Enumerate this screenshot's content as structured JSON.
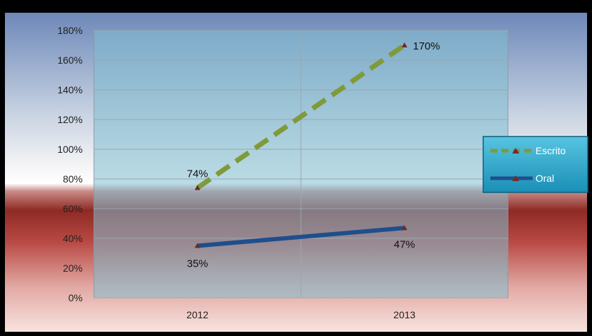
{
  "chart_data": {
    "type": "line",
    "categories": [
      "2012",
      "2013"
    ],
    "series": [
      {
        "name": "Escrito",
        "values": [
          74,
          170
        ],
        "labels": [
          "74%",
          "170%"
        ],
        "color": "#7f9a3a",
        "style": "dashed"
      },
      {
        "name": "Oral",
        "values": [
          35,
          47
        ],
        "labels": [
          "35%",
          "47%"
        ],
        "color": "#1f4e8c",
        "style": "solid"
      }
    ],
    "ylim": [
      0,
      180
    ],
    "yticks": [
      "0%",
      "20%",
      "40%",
      "60%",
      "80%",
      "100%",
      "120%",
      "140%",
      "160%",
      "180%"
    ],
    "grid": true,
    "legend_position": "right"
  },
  "colors": {
    "frame": "#000000",
    "plot_area": "#7fbdd0",
    "legend_fill": "#2aa3c9"
  }
}
